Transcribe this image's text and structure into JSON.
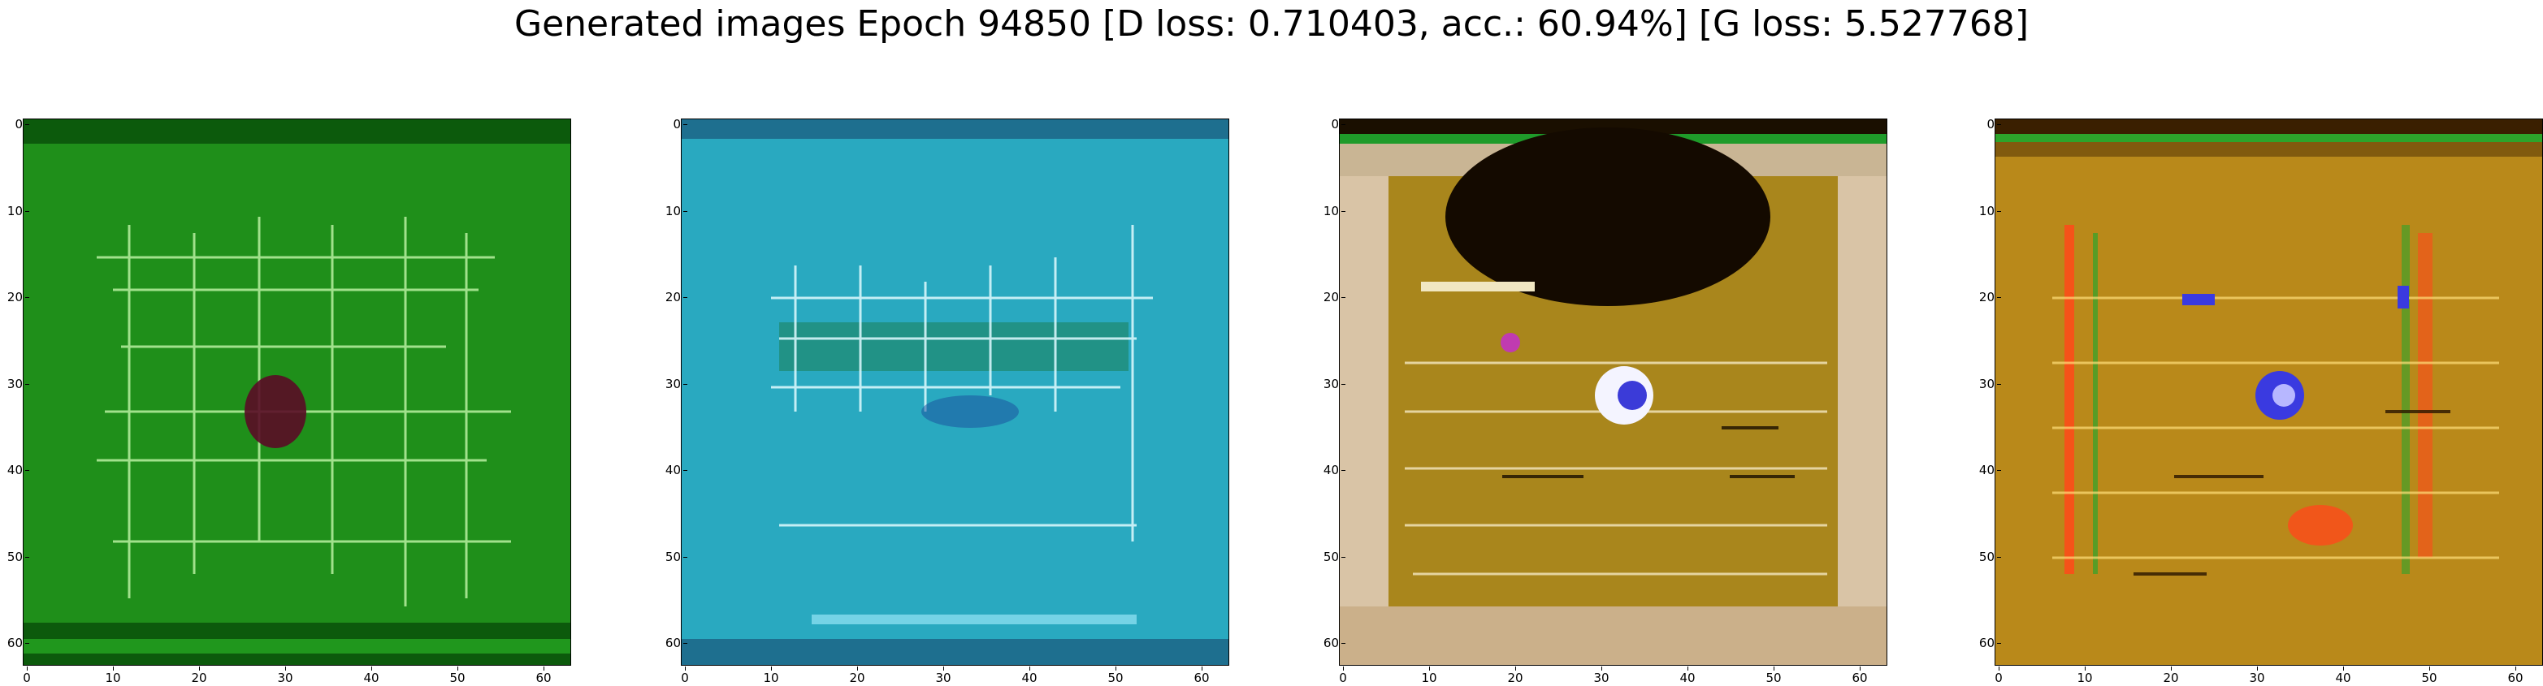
{
  "title": "Generated images Epoch 94850 [D loss: 0.710403, acc.: 60.94%] [G loss: 5.527768]",
  "ticks": {
    "y": [
      "0",
      "10",
      "20",
      "30",
      "40",
      "50",
      "60"
    ],
    "x": [
      "0",
      "10",
      "20",
      "30",
      "40",
      "50",
      "60"
    ]
  },
  "panels": [
    {
      "name": "green",
      "base": "#1f8f1a",
      "dark": "#0c5a0c",
      "stroke": "#b8f0a0"
    },
    {
      "name": "cyan",
      "base": "#29a9c0",
      "dark": "#1e6f8f",
      "stroke": "#e0fbff"
    },
    {
      "name": "brown",
      "base": "#a9861c",
      "dark": "#1a0f00",
      "stroke": "#fff6d8"
    },
    {
      "name": "amber",
      "base": "#b9891a",
      "dark": "#5c3a06",
      "stroke": "#ffdf7a"
    }
  ]
}
